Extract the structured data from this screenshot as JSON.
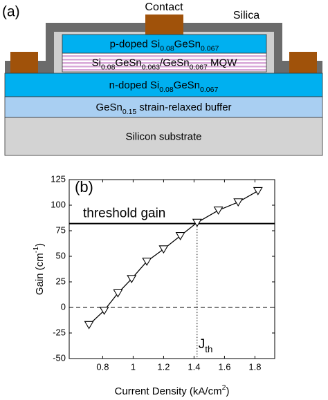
{
  "diagram": {
    "label": "(a)",
    "contact": "Contact",
    "silica": "Silica",
    "layers": [
      {
        "parts": [
          {
            "text": "p-doped Si"
          },
          {
            "text": "0.08",
            "sub": true
          },
          {
            "text": "GeSn"
          },
          {
            "text": "0.067",
            "sub": true
          }
        ]
      },
      {
        "parts": [
          {
            "text": "Si"
          },
          {
            "text": "0.08",
            "sub": true
          },
          {
            "text": "GeSn"
          },
          {
            "text": "0.063",
            "sub": true
          },
          {
            "text": "/GeSn"
          },
          {
            "text": "0.067",
            "sub": true
          },
          {
            "text": " MQW"
          }
        ]
      },
      {
        "parts": [
          {
            "text": "n-doped Si"
          },
          {
            "text": "0.08",
            "sub": true
          },
          {
            "text": "GeSn"
          },
          {
            "text": "0.067",
            "sub": true
          }
        ]
      },
      {
        "parts": [
          {
            "text": "GeSn"
          },
          {
            "text": "0.15",
            "sub": true
          },
          {
            "text": " strain-relaxed buffer"
          }
        ]
      },
      {
        "parts": [
          {
            "text": "Silicon substrate"
          }
        ]
      }
    ]
  },
  "chart_data": {
    "type": "line",
    "title": "(b)",
    "marker": "triangle-down",
    "color": "#000000",
    "xlabel": [
      {
        "text": "Current Density (kA/cm"
      },
      {
        "text": "2",
        "sup": true
      },
      {
        "text": ")"
      }
    ],
    "ylabel": [
      {
        "text": "Gain (cm"
      },
      {
        "text": "-1",
        "sup": true
      },
      {
        "text": ")"
      }
    ],
    "x": [
      0.71,
      0.81,
      0.9,
      0.99,
      1.09,
      1.2,
      1.31,
      1.42,
      1.56,
      1.69,
      1.82
    ],
    "values": [
      -17,
      -3,
      14,
      28,
      45,
      57,
      70,
      83,
      95,
      103,
      114
    ],
    "xlim": [
      0.58,
      1.93
    ],
    "xticks": [
      0.8,
      1,
      1.2,
      1.4,
      1.6,
      1.8
    ],
    "ylim": [
      -50,
      125
    ],
    "yticks": [
      -50,
      -25,
      0,
      25,
      50,
      75,
      100,
      125
    ],
    "zero_line": 0,
    "threshold_gain": {
      "text": "threshold gain",
      "value": 82
    },
    "jth": {
      "parts": [
        {
          "text": "J"
        },
        {
          "text": "th",
          "sub": true
        }
      ],
      "value": 1.42
    }
  }
}
